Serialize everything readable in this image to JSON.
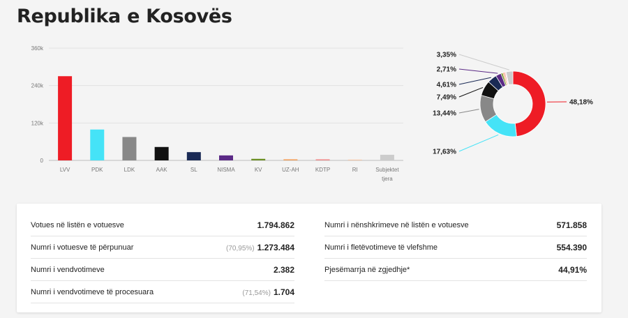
{
  "page": {
    "title": "Republika e Kosovës"
  },
  "chart_data": [
    {
      "type": "bar",
      "categories": [
        "LVV",
        "PDK",
        "LDK",
        "AAK",
        "SL",
        "NISMA",
        "KV",
        "UZ-AH",
        "KDTP",
        "RI",
        "Subjektet tjera"
      ],
      "values": [
        270000,
        99000,
        75000,
        43000,
        26500,
        16000,
        5000,
        3500,
        3500,
        2500,
        18000
      ],
      "colors": [
        "#ee1c25",
        "#45e3f7",
        "#888888",
        "#111111",
        "#1a2a55",
        "#5b2a86",
        "#6b8e23",
        "#f3a05a",
        "#f08c8c",
        "#f7c9a8",
        "#cccccc"
      ],
      "yticks": [
        {
          "v": 0,
          "t": "0"
        },
        {
          "v": 120000,
          "t": "120k"
        },
        {
          "v": 240000,
          "t": "240k"
        },
        {
          "v": 360000,
          "t": "360k"
        }
      ],
      "ylim": [
        0,
        360000
      ],
      "grid": true
    },
    {
      "type": "pie",
      "donut": true,
      "labels": [
        "LVV",
        "PDK",
        "LDK",
        "AAK",
        "SL",
        "NISMA",
        "KV",
        "UZ-AH",
        "KDTP",
        "RI",
        "Subjektet tjera"
      ],
      "values": [
        48.18,
        17.63,
        13.44,
        7.49,
        4.61,
        2.71,
        0.9,
        0.7,
        0.6,
        0.4,
        3.35
      ],
      "display": [
        "48,18%",
        "17,63%",
        "13,44%",
        "7,49%",
        "4,61%",
        "2,71%",
        "",
        "",
        "",
        "",
        "3,35%"
      ],
      "colors": [
        "#ee1c25",
        "#45e3f7",
        "#888888",
        "#111111",
        "#1a2a55",
        "#5b2a86",
        "#6b8e23",
        "#f3a05a",
        "#f08c8c",
        "#f7c9a8",
        "#cccccc"
      ]
    }
  ],
  "stats": {
    "left": [
      {
        "label": "Votues në listën e votuesve",
        "pct": "",
        "value": "1.794.862"
      },
      {
        "label": "Numri i votuesve të përpunuar",
        "pct": "(70,95%)",
        "value": "1.273.484"
      },
      {
        "label": "Numri i vendvotimeve",
        "pct": "",
        "value": "2.382"
      },
      {
        "label": "Numri i vendvotimeve të procesuara",
        "pct": "(71,54%)",
        "value": "1.704"
      }
    ],
    "right": [
      {
        "label": "Numri i nënshkrimeve në listën e votuesve",
        "value": "571.858"
      },
      {
        "label": "Numri i fletëvotimeve të vlefshme",
        "value": "554.390"
      },
      {
        "label": "Pjesëmarrja në zgjedhje*",
        "value": "44,91%"
      }
    ]
  }
}
